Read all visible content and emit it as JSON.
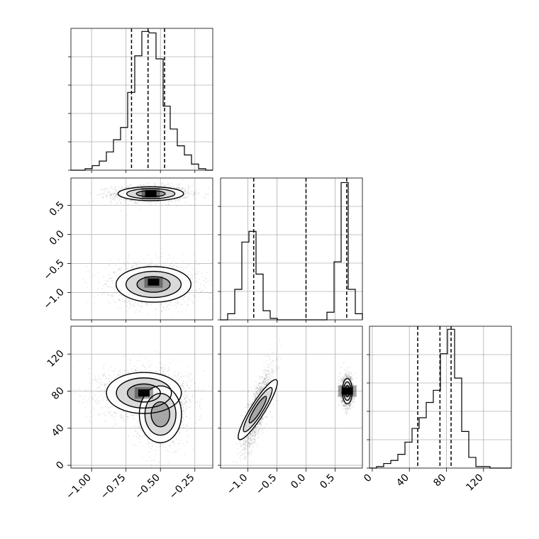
{
  "chart_data": {
    "type": "corner",
    "parameters": [
      {
        "name": "",
        "ticks": [
          -1.0,
          -0.75,
          -0.5,
          -0.25
        ],
        "tick_labels": [
          "−1.00",
          "−0.75",
          "−0.50",
          "−0.25"
        ],
        "range": [
          -1.15,
          -0.12
        ],
        "quantiles": [
          -0.71,
          -0.59,
          -0.47
        ],
        "hist": {
          "edges_start": -1.15,
          "bin_width": 0.0515,
          "counts": [
            0,
            0,
            0.01,
            0.03,
            0.06,
            0.12,
            0.2,
            0.28,
            0.51,
            0.75,
            0.91,
            0.9,
            0.73,
            0.42,
            0.27,
            0.16,
            0.1,
            0.04,
            0.01,
            0
          ]
        }
      },
      {
        "name": "",
        "ticks": [
          -1.0,
          -0.5,
          0.0,
          0.5
        ],
        "tick_labels": [
          "−1.0",
          "−0.5",
          "0.0",
          "0.5"
        ],
        "range": [
          -1.47,
          0.97
        ],
        "quantiles": [
          -0.9,
          0.0,
          0.7
        ],
        "hist": {
          "edges_start": -1.47,
          "bin_width": 0.122,
          "counts": [
            0,
            0.04,
            0.2,
            0.51,
            0.58,
            0.3,
            0.06,
            0.01,
            0,
            0,
            0,
            0,
            0,
            0,
            0,
            0.05,
            0.38,
            0.9,
            0.2,
            0.04
          ]
        }
      },
      {
        "name": "",
        "ticks": [
          0,
          40,
          80,
          120
        ],
        "tick_labels": [
          "0",
          "40",
          "80",
          "120"
        ],
        "range": [
          -3,
          150
        ],
        "quantiles": [
          49,
          73,
          85
        ],
        "hist": {
          "edges_start": -3,
          "bin_width": 7.65,
          "counts": [
            0,
            0.01,
            0.03,
            0.05,
            0.09,
            0.17,
            0.26,
            0.33,
            0.43,
            0.51,
            0.75,
            0.91,
            0.59,
            0.24,
            0.07,
            0.01,
            0.01,
            0,
            0,
            0
          ]
        }
      }
    ],
    "scatter_panels": [
      {
        "x": 0,
        "y": 1,
        "clusters": [
          {
            "mean": [
              -0.57,
              0.7
            ],
            "spread": [
              0.14,
              0.07
            ],
            "n": 1600
          },
          {
            "mean": [
              -0.55,
              -0.86
            ],
            "spread": [
              0.16,
              0.18
            ],
            "n": 1600
          }
        ],
        "density_peaks": [
          [
            -0.57,
            0.7
          ],
          [
            -0.55,
            -0.82
          ]
        ]
      },
      {
        "x": 0,
        "y": 2,
        "clusters": [
          {
            "mean": [
              -0.62,
              78
            ],
            "spread": [
              0.16,
              13
            ],
            "n": 2000
          },
          {
            "mean": [
              -0.5,
              55
            ],
            "spread": [
              0.09,
              18
            ],
            "n": 1200
          }
        ],
        "density_peaks": [
          [
            -0.62,
            78
          ]
        ]
      },
      {
        "x": 1,
        "y": 2,
        "clusters": [
          {
            "mean": [
              -0.83,
              60
            ],
            "spread": [
              0.13,
              22
            ],
            "n": 1600,
            "corr": 0.8
          },
          {
            "mean": [
              0.71,
              80
            ],
            "spread": [
              0.05,
              8
            ],
            "n": 1600
          }
        ],
        "density_peaks": [
          [
            0.71,
            80
          ]
        ]
      }
    ],
    "grid": true,
    "quantile_style": "dashed"
  }
}
